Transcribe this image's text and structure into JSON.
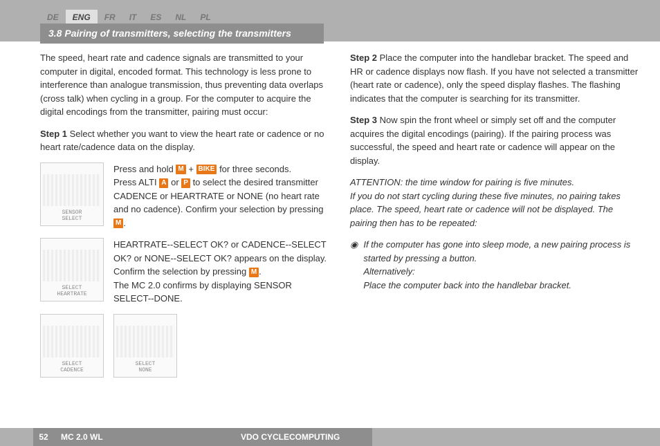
{
  "topbar": {
    "langs": [
      "DE",
      "ENG",
      "FR",
      "IT",
      "ES",
      "NL",
      "PL"
    ],
    "active": "ENG"
  },
  "section": {
    "title": "3.8 Pairing of transmitters, selecting the transmitters"
  },
  "left": {
    "intro": "The speed, heart rate and cadence signals are transmitted to your computer in digital, encoded format. This technology is less prone to interference than analogue transmission, thus preventing data overlaps (cross talk) when cycling in a group. For the computer to acquire the digital encodings from the transmitter, pairing must occur:",
    "step1_label": "Step 1",
    "step1_text": " Select whether you want to view the heart rate or cadence or no heart rate/cadence data on the display.",
    "row1": {
      "thumb_label": "SENSOR\nSELECT",
      "cap_a": "Press and hold ",
      "cap_b": " + ",
      "cap_c": " for three seconds.",
      "cap_d": "Press ALTI ",
      "cap_e": " or ",
      "cap_f": " to select the desired transmitter CADENCE or HEARTRATE or NONE (no heart rate and no cadence). Confirm your selection by pressing ",
      "cap_g": "."
    },
    "row2": {
      "thumb_label": "SELECT\nHEARTRATE",
      "cap_a": "HEARTRATE--SELECT OK? or CADENCE--SELECT OK? or NONE--SELECT OK? appears on the display.",
      "cap_b": "Confirm the selection by pressing ",
      "cap_c": ".",
      "cap_d": "The MC 2.0 confirms by displaying SENSOR SELECT--DONE."
    },
    "row3": {
      "thumb_a_label": "SELECT\nCADENCE",
      "thumb_b_label": "SELECT\nNONE"
    },
    "badges": {
      "m": "M",
      "bike": "BIKE",
      "a": "A",
      "p": "P"
    }
  },
  "right": {
    "step2_label": "Step 2",
    "step2_text": " Place the computer into the handlebar bracket. The speed and HR or cadence displays now flash. If you have not selected a transmitter (heart rate or cadence), only the speed display flashes. The flashing indicates that the computer is searching for its transmitter.",
    "step3_label": "Step 3",
    "step3_text": " Now spin the front wheel or simply set off and the computer acquires the digital encodings (pairing). If the pairing process was successful, the speed and heart rate or cadence will appear on the display.",
    "attention1": "ATTENTION: the time window for pairing is five minutes.",
    "attention2": "If you do not start cycling during these five minutes, no pairing takes place. The speed, heart rate or cadence will not be displayed. The pairing then has to be repeated:",
    "bullet1": "If the computer has gone into sleep mode, a new pairing process is started by pressing a button.",
    "bullet2": "Alternatively:",
    "bullet3": "Place the computer back into the handlebar bracket."
  },
  "footer": {
    "page": "52",
    "model": "MC 2.0 WL",
    "brand": "VDO CYCLECOMPUTING"
  }
}
